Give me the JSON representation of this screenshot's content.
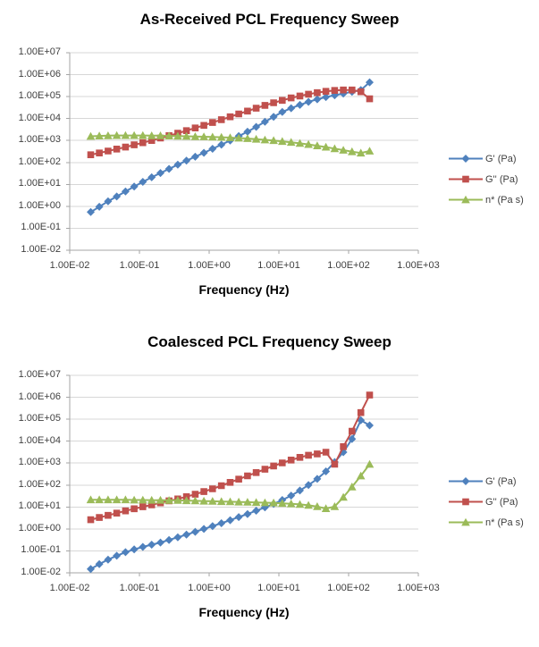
{
  "page": {
    "title": "PCL Frequency Sweep Charts",
    "background": "#FFFFFF"
  },
  "style": {
    "grid_color": "#D7D7D7",
    "axis_color": "#A6A6A6",
    "tick_label_color": "#3F3F3F",
    "title_color": "#000000"
  },
  "chart_data": [
    {
      "type": "line",
      "title": "As-Received PCL Frequency Sweep",
      "xlabel": "Frequency (Hz)",
      "ylabel": "",
      "x_scale": "log",
      "y_scale": "log",
      "xlim": [
        0.01,
        1000
      ],
      "ylim": [
        0.01,
        10000000
      ],
      "grid": "horizontal",
      "legend_position": "right",
      "x_tick_labels": [
        "1.00E-02",
        "1.00E-01",
        "1.00E+00",
        "1.00E+01",
        "1.00E+02",
        "1.00E+03"
      ],
      "y_tick_labels": [
        "1.00E+07",
        "1.00E+06",
        "1.00E+05",
        "1.00E+04",
        "1.00E+03",
        "1.00E+02",
        "1.00E+01",
        "1.00E+00",
        "1.00E-01",
        "1.00E-02"
      ],
      "frequencies": [
        0.02,
        0.0266,
        0.0355,
        0.0473,
        0.0631,
        0.0841,
        0.112,
        0.15,
        0.2,
        0.266,
        0.355,
        0.473,
        0.631,
        0.841,
        1.12,
        1.5,
        2,
        2.66,
        3.55,
        4.73,
        6.31,
        8.41,
        11.2,
        15,
        20,
        26.6,
        35.5,
        47.3,
        63.1,
        84.1,
        112,
        150,
        200
      ],
      "series": [
        {
          "name": "G' (Pa)",
          "color": "#4F81BD",
          "marker": "diamond",
          "values": [
            0.55,
            0.95,
            1.7,
            2.8,
            4.8,
            7.9,
            13,
            21,
            33,
            51,
            79,
            120,
            182,
            275,
            417,
            646,
            1000,
            1590,
            2510,
            4170,
            7080,
            12000,
            20000,
            29500,
            41700,
            57500,
            75900,
            95500,
            115000,
            138000,
            166000,
            200000,
            447000
          ]
        },
        {
          "name": "G'' (Pa)",
          "color": "#C0504D",
          "marker": "square",
          "values": [
            224,
            269,
            331,
            407,
            501,
            631,
            794,
            1000,
            1290,
            1660,
            2140,
            2820,
            3720,
            4900,
            6610,
            8910,
            12000,
            16200,
            21900,
            29500,
            39800,
            52500,
            67600,
            87100,
            107000,
            129000,
            151000,
            174000,
            191000,
            200000,
            200000,
            166000,
            79400
          ]
        },
        {
          "name": "n* (Pa s)",
          "color": "#9BBB59",
          "marker": "triangle",
          "values": [
            1550,
            1620,
            1660,
            1700,
            1700,
            1700,
            1700,
            1660,
            1660,
            1620,
            1580,
            1550,
            1510,
            1480,
            1450,
            1410,
            1350,
            1290,
            1230,
            1150,
            1070,
            1000,
            912,
            832,
            741,
            661,
            575,
            501,
            427,
            363,
            309,
            269,
            331
          ]
        }
      ]
    },
    {
      "type": "line",
      "title": "Coalesced PCL Frequency Sweep",
      "xlabel": "Frequency (Hz)",
      "ylabel": "",
      "x_scale": "log",
      "y_scale": "log",
      "xlim": [
        0.01,
        1000
      ],
      "ylim": [
        0.01,
        10000000
      ],
      "grid": "horizontal",
      "legend_position": "right",
      "x_tick_labels": [
        "1.00E-02",
        "1.00E-01",
        "1.00E+00",
        "1.00E+01",
        "1.00E+02",
        "1.00E+03"
      ],
      "y_tick_labels": [
        "1.00E+07",
        "1.00E+06",
        "1.00E+05",
        "1.00E+04",
        "1.00E+03",
        "1.00E+02",
        "1.00E+01",
        "1.00E+00",
        "1.00E-01",
        "1.00E-02"
      ],
      "frequencies": [
        0.02,
        0.0266,
        0.0355,
        0.0473,
        0.0631,
        0.0841,
        0.112,
        0.15,
        0.2,
        0.266,
        0.355,
        0.473,
        0.631,
        0.841,
        1.12,
        1.5,
        2,
        2.66,
        3.55,
        4.73,
        6.31,
        8.41,
        11.2,
        15,
        20,
        26.6,
        35.5,
        47.3,
        63.1,
        84.1,
        112,
        150,
        200
      ],
      "series": [
        {
          "name": "G' (Pa)",
          "color": "#4F81BD",
          "marker": "diamond",
          "values": [
            0.015,
            0.025,
            0.04,
            0.06,
            0.087,
            0.117,
            0.151,
            0.191,
            0.24,
            0.316,
            0.417,
            0.55,
            0.741,
            1.0,
            1.35,
            1.82,
            2.51,
            3.47,
            4.79,
            6.76,
            9.55,
            13.8,
            20.9,
            33.1,
            56.2,
            100,
            191,
            417,
            1120,
            3160,
            12600,
            89100,
            52500
          ]
        },
        {
          "name": "G'' (Pa)",
          "color": "#C0504D",
          "marker": "square",
          "values": [
            2.63,
            3.31,
            4.17,
            5.25,
            6.61,
            8.32,
            10.2,
            12.6,
            15.5,
            19.1,
            23.4,
            29.5,
            38,
            50.1,
            67.6,
            93.3,
            132,
            186,
            263,
            372,
            525,
            741,
            1020,
            1380,
            1820,
            2290,
            2630,
            3160,
            891,
            5620,
            28200,
            200000,
            1260000
          ]
        },
        {
          "name": "n* (Pa s)",
          "color": "#9BBB59",
          "marker": "triangle",
          "values": [
            21.4,
            21.4,
            21.4,
            21.4,
            21.4,
            20.9,
            20.9,
            20.4,
            20.4,
            20,
            20,
            19.5,
            19.1,
            18.6,
            18.2,
            17.8,
            17.4,
            17,
            16.6,
            16.2,
            15.8,
            15.5,
            14.8,
            14.1,
            13.2,
            12,
            10.5,
            8.5,
            10.5,
            28,
            83,
            263,
            891
          ]
        }
      ]
    }
  ]
}
